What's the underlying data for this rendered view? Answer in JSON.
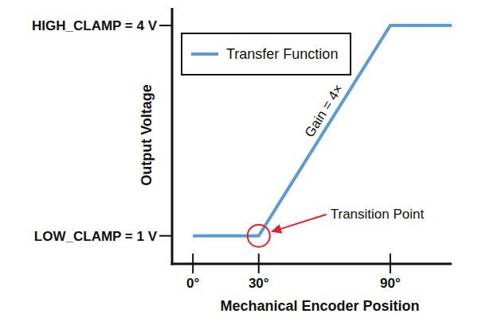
{
  "chart_data": {
    "type": "line",
    "x_label": "Mechanical Encoder Position",
    "y_label": "Output Voltage",
    "x": [
      0,
      30,
      90,
      118
    ],
    "series": [
      {
        "name": "Transfer Function",
        "color": "#5b9bd5",
        "values": [
          1,
          1,
          4,
          4
        ]
      }
    ],
    "xlim": [
      -9.5,
      118
    ],
    "ylim": [
      0.6,
      4.25
    ],
    "xticks": [
      {
        "value": 0,
        "label": "0°"
      },
      {
        "value": 30,
        "label": "30°"
      },
      {
        "value": 90,
        "label": "90°"
      }
    ],
    "yticks": [
      {
        "value": 1,
        "label": "LOW_CLAMP = 1 V"
      },
      {
        "value": 4,
        "label": "HIGH_CLAMP = 4 V"
      }
    ],
    "grid": false,
    "legend": "upper left",
    "annotations": [
      {
        "text": "Gain = 4×"
      },
      {
        "text": "Transition Point",
        "x": 30,
        "y": 1,
        "color": "#e3202a"
      }
    ]
  }
}
